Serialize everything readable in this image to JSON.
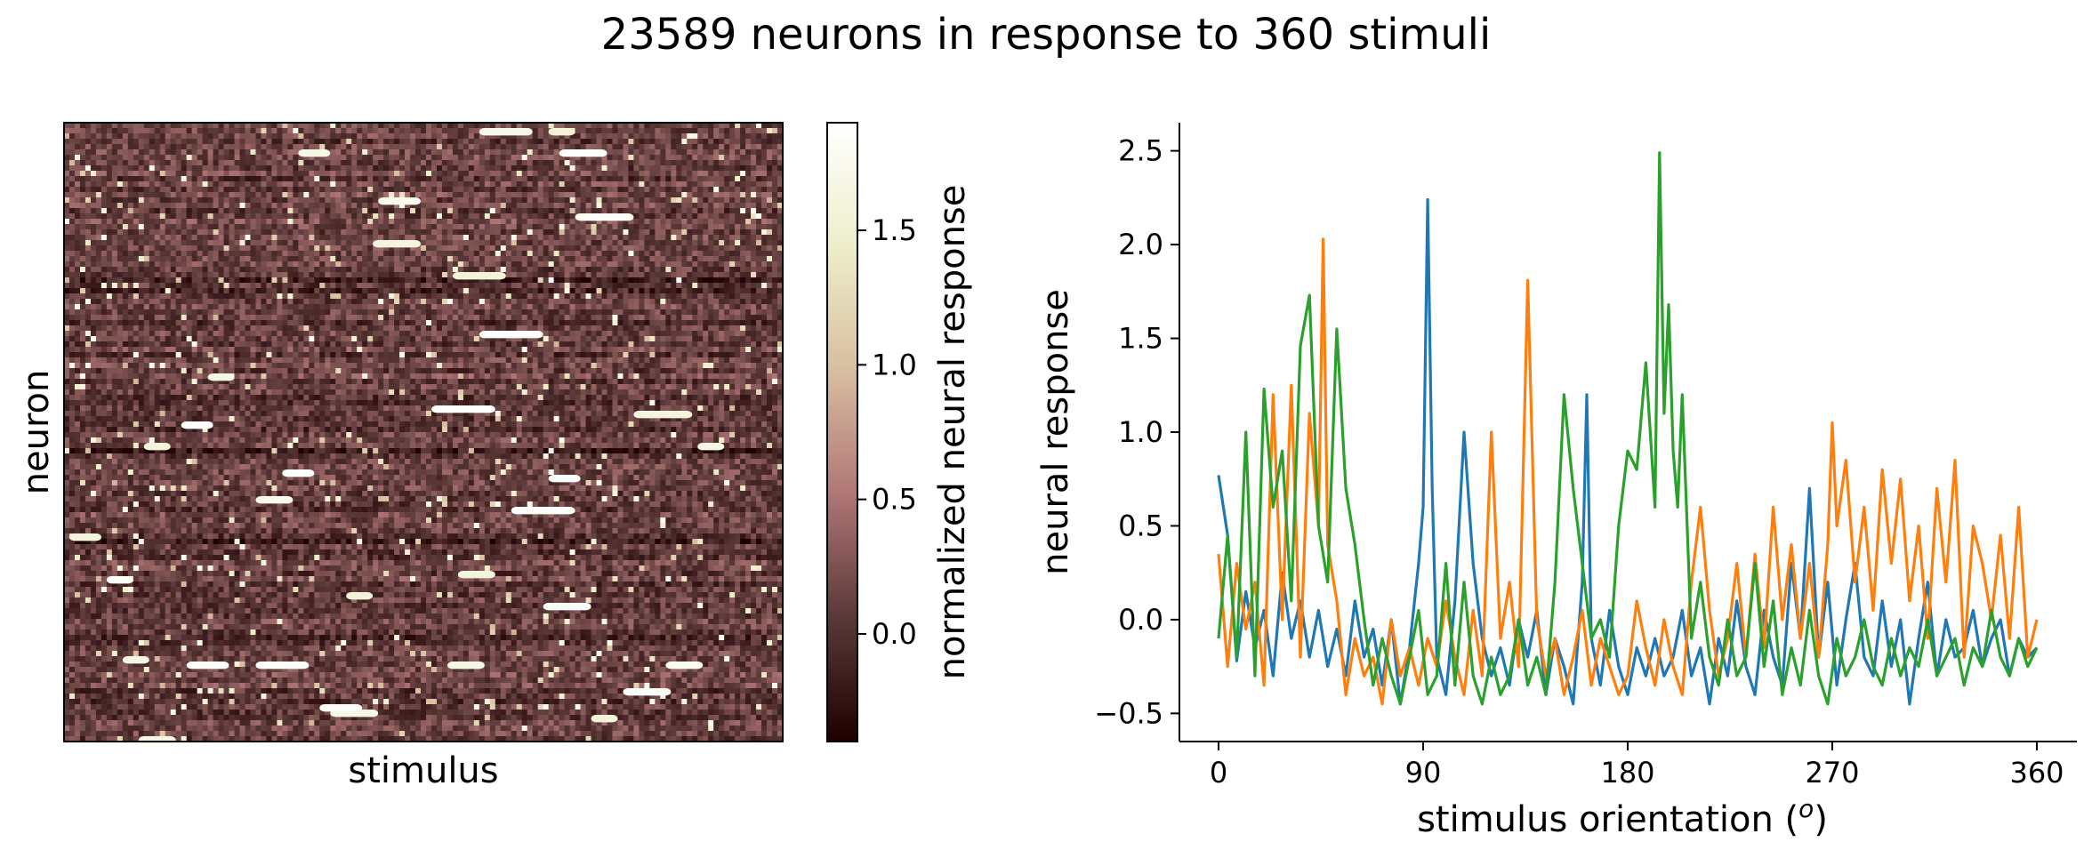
{
  "figure": {
    "title": "23589 neurons in response to 360 stimuli"
  },
  "chart_data": [
    {
      "type": "heatmap",
      "xlabel": "stimulus",
      "ylabel": "neuron",
      "n_rows": 23589,
      "n_cols": 360,
      "colormap": "pink",
      "colormap_stops": [
        "#1e0000",
        "#5a3838",
        "#b07676",
        "#d8bea0",
        "#eeeeca",
        "#ffffff"
      ],
      "colorbar": {
        "label": "normalized neural response",
        "range": [
          -0.4,
          1.9
        ],
        "ticks": [
          0.0,
          0.5,
          1.0,
          1.5
        ],
        "tick_labels": [
          "0.0",
          "0.5",
          "1.0",
          "1.5"
        ]
      }
    },
    {
      "type": "line",
      "xlabel": "stimulus orientation (ᵒ)",
      "xlabel_main": "stimulus orientation (",
      "xlabel_sup": "o",
      "xlabel_close": ")",
      "ylabel": "neural response",
      "xlim": [
        0,
        360
      ],
      "ylim": [
        -0.65,
        2.65
      ],
      "xticks": [
        0,
        90,
        180,
        270,
        360
      ],
      "xtick_labels": [
        "0",
        "90",
        "180",
        "270",
        "360"
      ],
      "yticks": [
        -0.5,
        0.0,
        0.5,
        1.0,
        1.5,
        2.0,
        2.5
      ],
      "ytick_labels": [
        "−0.5",
        "0.0",
        "0.5",
        "1.0",
        "1.5",
        "2.0",
        "2.5"
      ],
      "grid": false,
      "series": [
        {
          "color": "#1f77b4",
          "x": [
            0,
            4,
            8,
            12,
            16,
            20,
            24,
            28,
            32,
            36,
            40,
            44,
            48,
            52,
            56,
            60,
            64,
            68,
            72,
            76,
            80,
            84,
            88,
            90,
            92,
            94,
            96,
            100,
            104,
            108,
            112,
            116,
            120,
            124,
            128,
            132,
            136,
            140,
            144,
            148,
            152,
            156,
            160,
            162,
            164,
            168,
            172,
            176,
            180,
            184,
            188,
            192,
            196,
            200,
            204,
            208,
            212,
            216,
            220,
            224,
            228,
            232,
            236,
            240,
            244,
            248,
            252,
            256,
            260,
            264,
            268,
            272,
            276,
            280,
            284,
            288,
            292,
            296,
            300,
            304,
            308,
            312,
            316,
            320,
            324,
            328,
            332,
            336,
            340,
            344,
            348,
            352,
            356,
            360
          ],
          "y": [
            0.77,
            0.45,
            -0.22,
            0.15,
            -0.15,
            0.05,
            -0.3,
            0.25,
            -0.1,
            0.1,
            -0.2,
            0.05,
            -0.25,
            -0.05,
            -0.3,
            0.1,
            -0.2,
            -0.05,
            -0.35,
            0.0,
            -0.45,
            -0.15,
            0.3,
            0.6,
            2.24,
            0.7,
            -0.2,
            -0.4,
            0.1,
            1.0,
            0.3,
            -0.1,
            -0.3,
            -0.15,
            -0.35,
            0.0,
            -0.2,
            0.05,
            -0.4,
            -0.1,
            -0.25,
            -0.45,
            0.2,
            1.2,
            -0.1,
            -0.35,
            0.05,
            -0.25,
            -0.4,
            -0.15,
            -0.3,
            -0.1,
            -0.3,
            -0.2,
            0.05,
            -0.3,
            -0.15,
            -0.45,
            -0.1,
            -0.3,
            0.1,
            -0.25,
            -0.4,
            0.05,
            -0.2,
            -0.35,
            0.3,
            -0.1,
            0.7,
            -0.2,
            0.2,
            -0.35,
            0.0,
            0.3,
            -0.2,
            -0.3,
            0.1,
            -0.25,
            0.0,
            -0.45,
            -0.1,
            0.2,
            -0.3,
            0.0,
            -0.2,
            -0.15,
            0.05,
            -0.25,
            -0.1,
            0.0,
            -0.3,
            -0.1,
            -0.2,
            -0.15
          ]
        },
        {
          "color": "#ff7f0e",
          "x": [
            0,
            4,
            8,
            12,
            16,
            20,
            24,
            28,
            32,
            36,
            40,
            44,
            46,
            48,
            52,
            56,
            60,
            64,
            68,
            72,
            76,
            80,
            84,
            88,
            92,
            96,
            100,
            104,
            108,
            112,
            116,
            120,
            124,
            128,
            132,
            136,
            140,
            144,
            148,
            152,
            156,
            160,
            164,
            168,
            172,
            176,
            180,
            184,
            188,
            192,
            196,
            200,
            204,
            208,
            212,
            216,
            220,
            224,
            228,
            232,
            236,
            240,
            244,
            248,
            252,
            256,
            260,
            264,
            268,
            270,
            272,
            276,
            280,
            284,
            288,
            292,
            296,
            300,
            304,
            308,
            312,
            316,
            320,
            324,
            328,
            332,
            336,
            340,
            344,
            348,
            352,
            356,
            360
          ],
          "y": [
            0.35,
            -0.25,
            0.3,
            -0.05,
            0.2,
            -0.35,
            1.2,
            0.0,
            1.25,
            -0.2,
            1.1,
            0.5,
            2.03,
            0.4,
            0.1,
            -0.4,
            -0.1,
            -0.3,
            -0.2,
            -0.45,
            0.0,
            -0.3,
            -0.15,
            -0.35,
            -0.1,
            -0.25,
            0.1,
            -0.2,
            -0.4,
            0.05,
            -0.3,
            1.0,
            -0.1,
            0.2,
            -0.25,
            1.81,
            0.0,
            -0.3,
            -0.1,
            -0.4,
            -0.2,
            0.05,
            -0.35,
            -0.1,
            -0.25,
            -0.4,
            -0.3,
            0.1,
            -0.15,
            -0.35,
            0.0,
            -0.25,
            -0.4,
            0.2,
            0.6,
            0.05,
            -0.3,
            -0.1,
            0.3,
            -0.2,
            0.35,
            -0.15,
            0.6,
            0.0,
            0.4,
            -0.1,
            0.3,
            -0.2,
            0.4,
            1.05,
            0.5,
            0.85,
            0.2,
            0.6,
            0.05,
            0.8,
            0.3,
            0.75,
            0.1,
            0.5,
            -0.1,
            0.7,
            0.2,
            0.85,
            -0.2,
            0.5,
            0.3,
            0.0,
            0.45,
            -0.1,
            0.6,
            -0.2,
            0.0
          ]
        },
        {
          "color": "#2ca02c",
          "x": [
            0,
            4,
            8,
            12,
            16,
            20,
            24,
            28,
            32,
            36,
            40,
            44,
            48,
            52,
            56,
            60,
            64,
            68,
            72,
            76,
            80,
            84,
            88,
            92,
            96,
            100,
            104,
            108,
            112,
            116,
            120,
            124,
            128,
            132,
            136,
            140,
            144,
            148,
            152,
            156,
            160,
            164,
            168,
            172,
            176,
            180,
            184,
            188,
            192,
            194,
            196,
            198,
            200,
            202,
            204,
            208,
            212,
            216,
            220,
            224,
            228,
            232,
            236,
            240,
            244,
            248,
            252,
            256,
            260,
            264,
            268,
            272,
            276,
            280,
            284,
            288,
            292,
            296,
            300,
            304,
            308,
            312,
            316,
            320,
            324,
            328,
            332,
            336,
            340,
            344,
            348,
            352,
            356,
            360
          ],
          "y": [
            -0.1,
            0.45,
            -0.2,
            1.0,
            -0.3,
            1.23,
            0.6,
            0.9,
            0.1,
            1.46,
            1.73,
            0.5,
            0.2,
            1.55,
            0.7,
            0.4,
            0.0,
            -0.35,
            -0.1,
            -0.3,
            -0.45,
            -0.2,
            0.05,
            -0.4,
            -0.3,
            0.3,
            -0.35,
            0.2,
            -0.3,
            -0.45,
            -0.2,
            -0.4,
            -0.3,
            0.0,
            -0.35,
            -0.2,
            -0.4,
            0.2,
            1.2,
            0.7,
            0.3,
            -0.1,
            0.0,
            -0.2,
            0.5,
            0.9,
            0.8,
            1.37,
            0.6,
            2.49,
            1.1,
            1.68,
            0.9,
            0.6,
            1.2,
            -0.1,
            0.2,
            -0.2,
            -0.35,
            0.0,
            -0.3,
            -0.2,
            0.3,
            -0.25,
            0.1,
            -0.4,
            -0.15,
            -0.35,
            0.05,
            -0.3,
            -0.45,
            -0.1,
            -0.3,
            -0.2,
            0.0,
            -0.25,
            -0.35,
            -0.1,
            -0.3,
            -0.15,
            -0.25,
            0.0,
            -0.3,
            -0.2,
            -0.1,
            -0.35,
            -0.15,
            -0.25,
            0.05,
            -0.2,
            -0.3,
            -0.1,
            -0.25,
            -0.15
          ]
        }
      ]
    }
  ]
}
